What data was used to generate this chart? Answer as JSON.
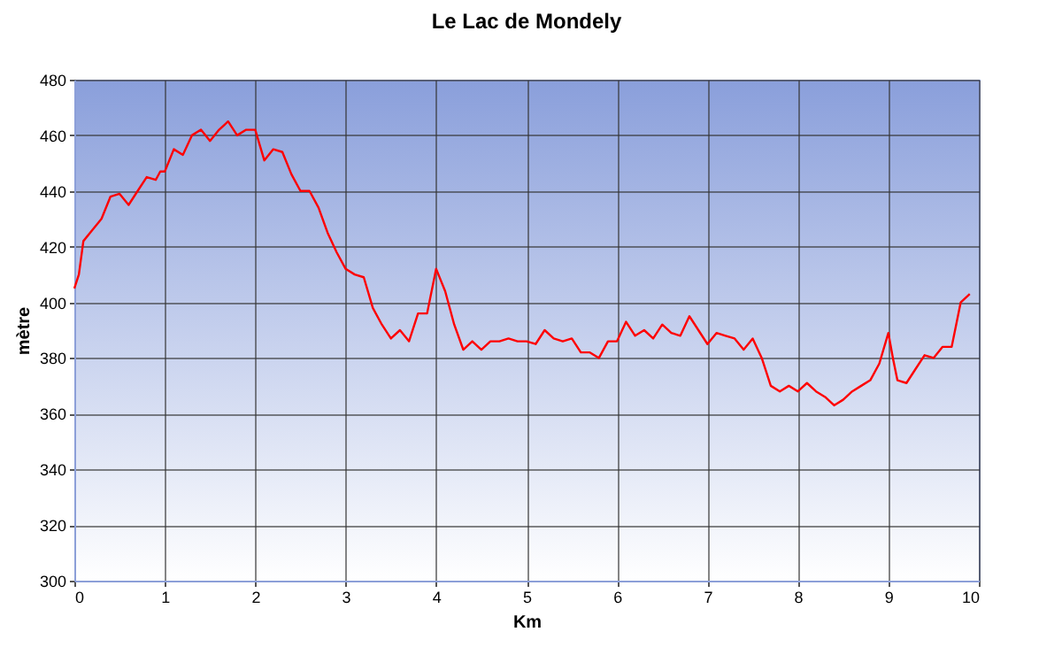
{
  "chart_data": {
    "type": "line",
    "title": "Le Lac de Mondely",
    "xlabel": "Km",
    "ylabel": "mètre",
    "x": [
      0,
      0.05,
      0.1,
      0.2,
      0.3,
      0.4,
      0.5,
      0.6,
      0.7,
      0.8,
      0.9,
      0.95,
      1.0,
      1.1,
      1.2,
      1.3,
      1.4,
      1.5,
      1.6,
      1.7,
      1.8,
      1.9,
      2.0,
      2.1,
      2.2,
      2.3,
      2.4,
      2.5,
      2.6,
      2.7,
      2.8,
      2.9,
      3.0,
      3.1,
      3.2,
      3.3,
      3.4,
      3.5,
      3.6,
      3.7,
      3.8,
      3.9,
      4.0,
      4.05,
      4.1,
      4.2,
      4.3,
      4.4,
      4.5,
      4.6,
      4.7,
      4.8,
      4.9,
      5.0,
      5.1,
      5.2,
      5.3,
      5.4,
      5.5,
      5.6,
      5.7,
      5.8,
      5.9,
      6.0,
      6.1,
      6.2,
      6.3,
      6.4,
      6.5,
      6.6,
      6.7,
      6.8,
      6.9,
      7.0,
      7.1,
      7.2,
      7.3,
      7.4,
      7.5,
      7.6,
      7.7,
      7.8,
      7.9,
      8.0,
      8.1,
      8.2,
      8.3,
      8.4,
      8.5,
      8.6,
      8.7,
      8.8,
      8.9,
      9.0,
      9.05,
      9.1,
      9.2,
      9.3,
      9.4,
      9.5,
      9.6,
      9.7,
      9.8,
      9.9
    ],
    "series": [
      {
        "color": "#ff0000",
        "values": [
          405,
          410,
          422,
          426,
          430,
          438,
          439,
          435,
          440,
          445,
          444,
          447,
          447,
          455,
          453,
          460,
          462,
          458,
          462,
          465,
          460,
          462,
          462,
          451,
          455,
          454,
          446,
          440,
          440,
          434,
          425,
          418,
          412,
          410,
          409,
          398,
          392,
          387,
          390,
          386,
          396,
          396,
          412,
          408,
          404,
          392,
          383,
          386,
          383,
          386,
          386,
          387,
          386,
          386,
          385,
          390,
          387,
          386,
          387,
          382,
          382,
          380,
          386,
          386,
          393,
          388,
          390,
          387,
          392,
          389,
          388,
          395,
          390,
          385,
          389,
          388,
          387,
          383,
          387,
          380,
          370,
          368,
          370,
          368,
          371,
          368,
          366,
          363,
          365,
          368,
          370,
          372,
          378,
          389,
          380,
          372,
          371,
          376,
          381,
          380,
          384,
          384,
          400,
          403
        ]
      }
    ],
    "xlim": [
      0,
      10
    ],
    "xticks": [
      0,
      1,
      2,
      3,
      4,
      5,
      6,
      7,
      8,
      9,
      10
    ],
    "ylim": [
      300,
      480
    ],
    "yticks": [
      300,
      320,
      340,
      360,
      380,
      400,
      420,
      440,
      460,
      480
    ],
    "grid": true,
    "marker": "none",
    "line_style": "solid"
  }
}
